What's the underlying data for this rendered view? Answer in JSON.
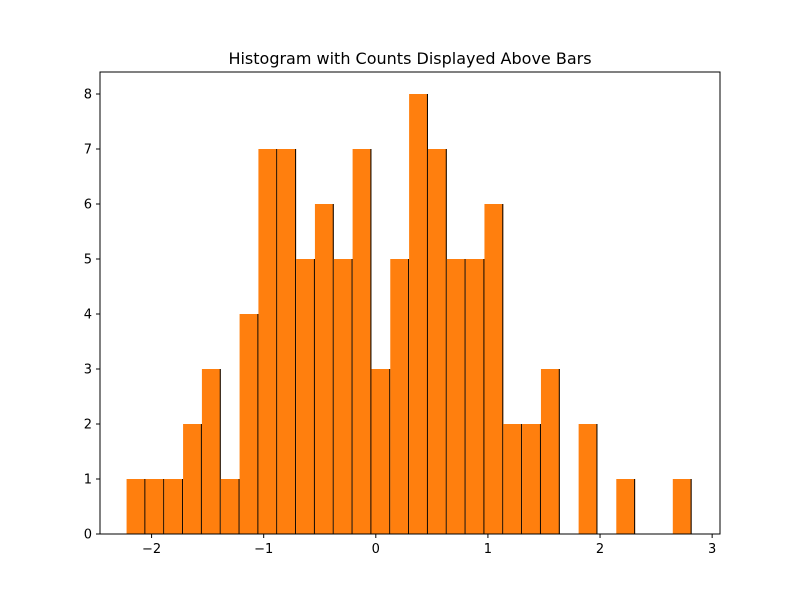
{
  "chart_data": {
    "type": "bar",
    "title": "Histogram with Counts Displayed Above Bars",
    "xlabel": "",
    "ylabel": "",
    "bar_color": "#ff7f0e",
    "edge_color": "#000000",
    "xlim": [
      -2.46,
      3.07
    ],
    "ylim": [
      0,
      8.4
    ],
    "xticks": [
      -2,
      -1,
      0,
      1,
      2,
      3
    ],
    "xtick_labels": [
      "−2",
      "−1",
      "0",
      "1",
      "2",
      "3"
    ],
    "yticks": [
      0,
      1,
      2,
      3,
      4,
      5,
      6,
      7,
      8
    ],
    "ytick_labels": [
      "0",
      "1",
      "2",
      "3",
      "4",
      "5",
      "6",
      "7",
      "8"
    ],
    "grid": false,
    "bins": [
      {
        "x0": -2.223,
        "x1": -2.055,
        "count": 1
      },
      {
        "x0": -2.055,
        "x1": -1.887,
        "count": 1
      },
      {
        "x0": -1.887,
        "x1": -1.719,
        "count": 1
      },
      {
        "x0": -1.719,
        "x1": -1.551,
        "count": 2
      },
      {
        "x0": -1.551,
        "x1": -1.383,
        "count": 3
      },
      {
        "x0": -1.383,
        "x1": -1.215,
        "count": 1
      },
      {
        "x0": -1.215,
        "x1": -1.047,
        "count": 4
      },
      {
        "x0": -1.047,
        "x1": -0.879,
        "count": 7
      },
      {
        "x0": -0.879,
        "x1": -0.711,
        "count": 7
      },
      {
        "x0": -0.711,
        "x1": -0.543,
        "count": 5
      },
      {
        "x0": -0.543,
        "x1": -0.375,
        "count": 6
      },
      {
        "x0": -0.375,
        "x1": -0.207,
        "count": 5
      },
      {
        "x0": -0.207,
        "x1": -0.039,
        "count": 7
      },
      {
        "x0": -0.039,
        "x1": 0.129,
        "count": 3
      },
      {
        "x0": 0.129,
        "x1": 0.297,
        "count": 5
      },
      {
        "x0": 0.297,
        "x1": 0.465,
        "count": 8
      },
      {
        "x0": 0.465,
        "x1": 0.633,
        "count": 7
      },
      {
        "x0": 0.633,
        "x1": 0.801,
        "count": 5
      },
      {
        "x0": 0.801,
        "x1": 0.969,
        "count": 5
      },
      {
        "x0": 0.969,
        "x1": 1.137,
        "count": 6
      },
      {
        "x0": 1.137,
        "x1": 1.305,
        "count": 2
      },
      {
        "x0": 1.305,
        "x1": 1.473,
        "count": 2
      },
      {
        "x0": 1.473,
        "x1": 1.641,
        "count": 3
      },
      {
        "x0": 1.641,
        "x1": 1.809,
        "count": 0
      },
      {
        "x0": 1.809,
        "x1": 1.977,
        "count": 2
      },
      {
        "x0": 1.977,
        "x1": 2.145,
        "count": 0
      },
      {
        "x0": 2.145,
        "x1": 2.313,
        "count": 1
      },
      {
        "x0": 2.313,
        "x1": 2.481,
        "count": 0
      },
      {
        "x0": 2.481,
        "x1": 2.649,
        "count": 0
      },
      {
        "x0": 2.649,
        "x1": 2.817,
        "count": 1
      }
    ]
  }
}
